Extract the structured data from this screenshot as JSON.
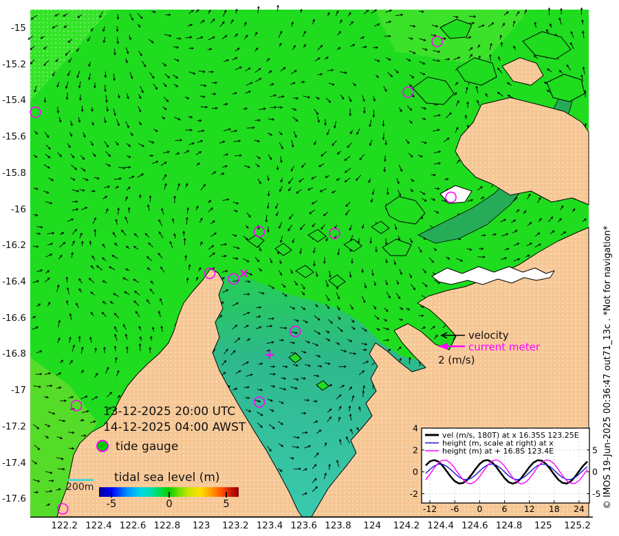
{
  "figure": {
    "credit": "© IMOS 19-Jun-2025 00:36:47 out71_13c . *Not for navigation*"
  },
  "map": {
    "lat_tick_labels": [
      "-15",
      "-15.2",
      "-15.4",
      "-15.6",
      "-15.8",
      "-16",
      "-16.2",
      "-16.4",
      "-16.6",
      "-16.8",
      "-17",
      "-17.2",
      "-17.4",
      "-17.6"
    ],
    "lon_tick_labels": [
      "122.2",
      "122.4",
      "122.6",
      "122.8",
      "123",
      "123.2",
      "123.4",
      "123.6",
      "123.8",
      "124",
      "124.2",
      "124.4",
      "124.6",
      "124.8",
      "125",
      "125.2"
    ],
    "timestamp_utc": "13-12-2025 20:00 UTC",
    "timestamp_awst": "14-12-2025 04:00 AWST",
    "tide_gauge_label": "tide gauge",
    "scalebar_label": "200m",
    "colorbar": {
      "title": "tidal sea level (m)",
      "tick_labels": [
        "-5",
        "0",
        "5"
      ],
      "gradient": [
        "#000090 0%",
        "#0000ff 9%",
        "#0090ff 20%",
        "#00d8e8 30%",
        "#00e0a0 38%",
        "#00d830 46%",
        "#00d000 50%",
        "#70dd00 57%",
        "#c8e400 64%",
        "#ffe000 72%",
        "#ffa000 80%",
        "#ff5000 88%",
        "#d01800 94%",
        "#900000 100%"
      ]
    },
    "vector_legend": {
      "velocity_label": "velocity",
      "current_meter_label": "current meter",
      "scale_label": "2 (m/s)"
    },
    "colors": {
      "sea_green": "#1fdc1f",
      "sea_green_light": "#3ce22a",
      "sea_green_pale": "#55dc28",
      "sea_dotted": "#35e428",
      "sound_teal_top": "#24cf52",
      "sound_teal_mid": "#2eb88c",
      "sound_teal_bottom": "#3ac9ae",
      "channel_green": "#26ac58",
      "land_tan": "#f6c795",
      "land_dot": "#fbe0bb",
      "coast": "#000000",
      "magenta": "#ff00ff",
      "isobath_cyan": "#45d8d8",
      "white_water": "#ffffff"
    },
    "tide_gauges_lonlat": [
      [
        122.03,
        -15.46
      ],
      [
        124.38,
        -15.07
      ],
      [
        124.21,
        -15.35
      ],
      [
        123.05,
        -16.35
      ],
      [
        123.19,
        -16.38
      ],
      [
        123.34,
        -16.12
      ],
      [
        123.78,
        -16.13
      ],
      [
        123.55,
        -16.67
      ],
      [
        123.34,
        -17.06
      ],
      [
        122.27,
        -17.08
      ],
      [
        122.19,
        -17.65
      ],
      [
        124.46,
        -15.93
      ]
    ],
    "station_markers": [
      {
        "symbol": "x",
        "lon": 123.25,
        "lat": -16.35
      },
      {
        "symbol": "plus",
        "lon": 123.4,
        "lat": -16.8
      }
    ]
  },
  "chart_data": {
    "type": "line",
    "x_hours": [
      -13,
      -12,
      -11,
      -10,
      -9,
      -8,
      -7,
      -6,
      -5,
      -4,
      -3,
      -2,
      -1,
      0,
      1,
      2,
      3,
      4,
      5,
      6,
      7,
      8,
      9,
      10,
      11,
      12,
      13,
      14,
      15,
      16,
      17,
      18,
      19,
      20,
      21,
      22,
      23,
      24,
      25,
      26
    ],
    "xticks": [
      -12,
      -6,
      0,
      6,
      12,
      18,
      24
    ],
    "yticks_left": [
      4,
      2,
      0,
      -2
    ],
    "yticks_right": [
      5,
      0,
      -5
    ],
    "xlim": [
      -14,
      26.5
    ],
    "ylim_left": [
      -2.85,
      4
    ],
    "right_axis_per_left_unit": 2.5,
    "grid": "dashed",
    "legend_position": "top-left",
    "series": [
      {
        "name": "vel (m/s, 180T) at x 16.35S 123.25E",
        "color": "#000000",
        "line_width": 2.6,
        "axis": "left",
        "values": [
          0.59,
          0.95,
          1.08,
          0.95,
          0.59,
          0.09,
          -0.43,
          -0.85,
          -1.06,
          -1.02,
          -0.74,
          -0.28,
          0.25,
          0.72,
          1.02,
          1.07,
          0.87,
          0.47,
          -0.06,
          -0.56,
          -0.94,
          -1.08,
          -0.95,
          -0.59,
          -0.09,
          0.43,
          0.85,
          1.06,
          1.03,
          0.74,
          0.28,
          -0.25,
          -0.72,
          -1.01,
          -1.07,
          -0.87,
          -0.47,
          0.06,
          0.56,
          0.94
        ]
      },
      {
        "name": "height (m, scale at right) at x",
        "color": "#1515cc",
        "line_width": 1.4,
        "axis": "right",
        "values": [
          -0.35,
          0.55,
          1.3,
          1.75,
          1.75,
          1.3,
          0.55,
          -0.35,
          -1.18,
          -1.7,
          -1.78,
          -1.43,
          -0.73,
          0.18,
          1.03,
          1.63,
          1.8,
          1.53,
          0.88,
          0,
          -0.88,
          -1.53,
          -1.8,
          -1.63,
          -1.03,
          -0.18,
          0.73,
          1.43,
          1.78,
          1.7,
          1.18,
          0.35,
          -0.55,
          -1.3,
          -1.75,
          -1.75,
          -1.3,
          -0.55,
          0.35,
          1.18
        ]
      },
      {
        "name": "height (m) at + 16.8S 123.4E",
        "color": "#ff00ff",
        "line_width": 1.4,
        "axis": "left",
        "values": [
          -0.72,
          -0.22,
          0.33,
          0.8,
          1.06,
          1.06,
          0.8,
          0.33,
          -0.22,
          -0.72,
          -1.03,
          -1.09,
          -0.87,
          -0.44,
          0.11,
          0.62,
          0.99,
          1.1,
          0.93,
          0.54,
          0,
          -0.54,
          -0.93,
          -1.1,
          -0.99,
          -0.62,
          -0.11,
          0.44,
          0.87,
          1.09,
          1.03,
          0.72,
          0.22,
          -0.33,
          -0.8,
          -1.06,
          -1.06,
          -0.8,
          -0.33,
          0.22
        ]
      }
    ]
  }
}
